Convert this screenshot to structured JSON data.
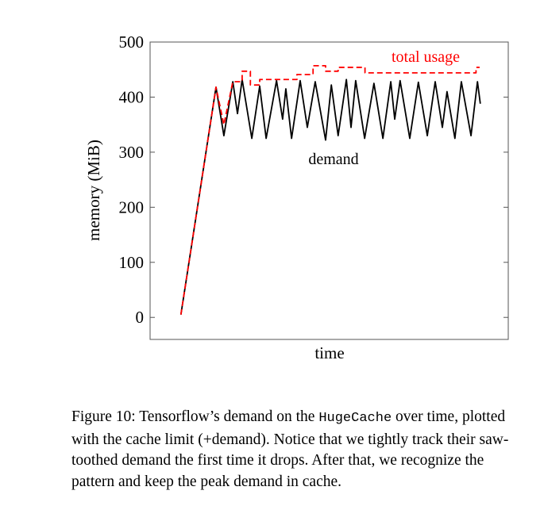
{
  "chart_data": {
    "type": "line",
    "title": "",
    "xlabel": "time",
    "ylabel": "memory (MiB)",
    "xlim": [
      0,
      100
    ],
    "ylim": [
      -40,
      500
    ],
    "yticks": [
      0,
      100,
      200,
      300,
      400,
      500
    ],
    "xticks": [],
    "grid": false,
    "series": [
      {
        "name": "demand",
        "color": "#000000",
        "style": "solid",
        "x": [
          8.6,
          18.4,
          20.6,
          23.1,
          24.4,
          25.7,
          28.4,
          30.6,
          32.4,
          35.3,
          37,
          37.9,
          39.5,
          41.9,
          43.9,
          46.1,
          49,
          50.6,
          52.5,
          54.8,
          56.1,
          57.4,
          59.9,
          62.5,
          65,
          67.2,
          68.3,
          69.8,
          72.5,
          74.9,
          77.4,
          79.6,
          81.6,
          82.9,
          85.1,
          86.9,
          89.6,
          91.4,
          92.2
        ],
        "y": [
          5,
          418,
          330,
          428,
          370,
          432,
          325,
          420,
          325,
          430,
          360,
          415,
          325,
          430,
          345,
          428,
          322,
          422,
          330,
          432,
          345,
          430,
          325,
          425,
          325,
          428,
          360,
          430,
          325,
          427,
          330,
          428,
          345,
          410,
          325,
          428,
          330,
          428,
          388
        ]
      },
      {
        "name": "total usage",
        "color": "#ff0000",
        "style": "dashed",
        "x": [
          8.6,
          18.4,
          20.6,
          23.1,
          25.7,
          25.7,
          28,
          28,
          30.6,
          30.6,
          41,
          41,
          45.5,
          45.5,
          49,
          49,
          52.5,
          52.5,
          60,
          60,
          91,
          91,
          92
        ],
        "y": [
          5,
          418,
          350,
          428,
          428,
          447,
          447,
          422,
          422,
          432,
          432,
          441,
          441,
          457,
          457,
          447,
          447,
          454,
          454,
          444,
          444,
          454,
          454
        ]
      }
    ],
    "annotations": [
      {
        "text": "total usage",
        "color": "#ff0000"
      },
      {
        "text": "demand",
        "color": "#000000"
      }
    ]
  },
  "caption": {
    "prefix": "Figure 10: Tensorflow’s demand on the ",
    "code": "HugeCache",
    "suffix": " over time, plotted with the cache limit (+demand). Notice that we tightly track their saw-toothed demand the first time it drops. After that, we recognize the pattern and keep the peak demand in cache."
  }
}
